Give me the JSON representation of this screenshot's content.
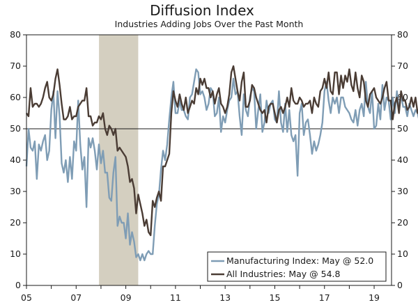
{
  "chart_data": {
    "type": "line",
    "title": "Diffusion Index",
    "subtitle": "Industries Adding Jobs Over the Past Month",
    "xlabel": "",
    "ylabel": "",
    "x_start": 2005.0,
    "x_step": 0.0833333,
    "xlim": [
      2005.0,
      2019.7
    ],
    "ylim": [
      0,
      80
    ],
    "y_ticks": [
      "0",
      "10",
      "20",
      "30",
      "40",
      "50",
      "60",
      "70",
      "80"
    ],
    "x_ticks": [
      {
        "label": "05",
        "x": 2005.0
      },
      {
        "label": "07",
        "x": 2007.0
      },
      {
        "label": "09",
        "x": 2009.0
      },
      {
        "label": "11",
        "x": 2011.0
      },
      {
        "label": "13",
        "x": 2013.0
      },
      {
        "label": "15",
        "x": 2015.0
      },
      {
        "label": "17",
        "x": 2017.0
      },
      {
        "label": "19",
        "x": 2019.0
      }
    ],
    "reference_line": 50,
    "recession": {
      "start": 2007.92,
      "end": 2009.5
    },
    "colors": {
      "manufacturing": "#7f9db5",
      "all": "#4a3c34",
      "recession": "#d4cfc0",
      "axis": "#1a1a1a"
    },
    "legend_position": "bottom-right",
    "series": [
      {
        "name": "Manufacturing Index: May @ 52.0",
        "values": [
          38,
          50,
          44,
          43,
          46,
          34,
          45,
          43,
          46,
          48,
          40,
          43,
          56,
          62,
          47,
          62,
          54,
          39,
          36,
          40,
          33,
          41,
          34,
          46,
          43,
          59,
          45,
          37,
          41,
          25,
          47,
          44,
          47,
          43,
          37,
          45,
          39,
          43,
          36,
          36,
          28,
          27,
          36,
          41,
          19,
          22,
          20,
          20,
          15,
          23,
          13,
          17,
          14,
          9,
          10,
          8,
          10,
          8,
          10,
          11,
          10,
          10,
          19,
          26,
          29,
          37,
          43,
          40,
          45,
          53,
          60,
          65,
          55,
          55,
          59,
          56,
          56,
          54,
          53,
          60,
          61,
          65,
          69,
          68,
          61,
          62,
          60,
          56,
          58,
          63,
          62,
          54,
          55,
          60,
          49,
          54,
          52,
          56,
          59,
          60,
          66,
          61,
          62,
          54,
          48,
          61,
          56,
          54,
          60,
          63,
          62,
          50,
          56,
          61,
          49,
          52,
          59,
          55,
          58,
          59,
          53,
          52,
          62,
          52,
          49,
          58,
          49,
          56,
          48,
          46,
          48,
          35,
          55,
          58,
          48,
          52,
          53,
          48,
          42,
          46,
          43,
          45,
          48,
          52,
          62,
          65,
          59,
          55,
          60,
          58,
          60,
          55,
          60,
          60,
          57,
          56,
          55,
          53,
          52,
          56,
          51,
          56,
          58,
          54,
          65,
          57,
          55,
          62,
          50,
          51,
          58,
          53,
          64,
          56,
          60,
          59,
          53,
          60,
          55,
          62,
          56,
          61,
          57,
          57,
          54,
          58,
          56,
          54,
          56,
          55,
          52,
          53,
          53,
          52,
          52,
          50,
          51,
          53,
          56,
          40,
          45,
          33,
          45,
          47,
          43,
          56,
          50,
          49,
          46,
          51,
          56,
          51,
          56,
          58,
          57,
          60,
          64,
          57,
          54,
          58,
          63,
          49,
          51,
          54,
          60,
          57,
          56,
          58,
          60,
          67,
          72,
          62,
          60,
          59,
          62,
          68,
          64,
          70,
          64,
          66,
          60,
          63,
          61,
          66,
          65,
          65,
          62,
          55,
          53,
          58,
          52,
          51,
          52
        ]
      },
      {
        "name": "All Industries: May @ 54.8",
        "values": [
          55,
          54,
          63,
          57,
          58,
          58,
          57,
          58,
          60,
          63,
          65,
          60,
          59,
          61,
          66,
          69,
          64,
          58,
          53,
          53,
          54,
          57,
          53,
          54,
          54,
          57,
          58,
          59,
          59,
          63,
          54,
          54,
          51,
          52,
          52,
          54,
          53,
          55,
          50,
          48,
          51,
          50,
          48,
          50,
          43,
          44,
          43,
          42,
          41,
          38,
          33,
          34,
          31,
          23,
          29,
          26,
          23,
          19,
          21,
          17,
          16,
          27,
          25,
          28,
          30,
          27,
          38,
          38,
          40,
          42,
          55,
          62,
          59,
          57,
          61,
          58,
          56,
          60,
          55,
          57,
          59,
          58,
          63,
          61,
          66,
          64,
          66,
          63,
          63,
          60,
          62,
          58,
          61,
          63,
          58,
          57,
          55,
          57,
          61,
          68,
          70,
          66,
          62,
          59,
          65,
          68,
          57,
          57,
          59,
          64,
          63,
          60,
          58,
          56,
          55,
          56,
          52,
          57,
          58,
          58,
          55,
          52,
          56,
          57,
          55,
          57,
          60,
          57,
          63,
          59,
          58,
          58,
          60,
          59,
          57,
          58,
          58,
          59,
          55,
          60,
          58,
          57,
          62,
          63,
          66,
          63,
          68,
          62,
          61,
          68,
          68,
          61,
          67,
          63,
          67,
          65,
          69,
          64,
          62,
          68,
          63,
          60,
          67,
          65,
          59,
          57,
          61,
          62,
          63,
          60,
          59,
          58,
          60,
          63,
          65,
          59,
          59,
          53,
          58,
          60,
          55,
          62,
          59,
          59,
          56,
          57,
          60,
          57,
          60,
          55,
          57,
          57,
          58,
          57,
          56,
          55,
          52,
          55,
          50,
          59,
          58,
          56,
          54,
          54,
          61,
          63,
          63,
          60,
          58,
          59,
          58,
          60,
          63,
          63,
          65,
          61,
          60,
          63,
          66,
          62,
          60,
          61,
          64,
          63,
          58,
          62,
          60,
          64,
          65,
          63,
          66,
          67,
          64,
          66,
          64,
          68,
          66,
          62,
          63,
          67,
          66,
          62,
          63,
          68,
          62,
          60,
          60,
          65,
          56,
          56,
          59,
          60,
          55
        ]
      }
    ]
  }
}
